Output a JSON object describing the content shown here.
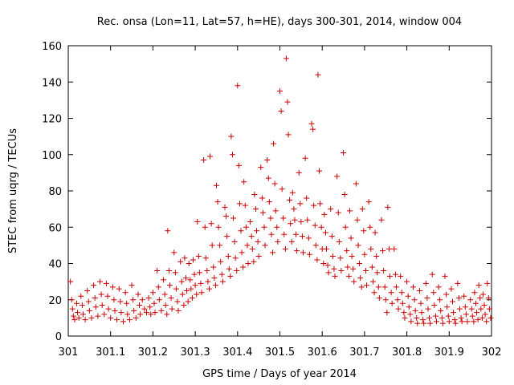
{
  "chart_data": {
    "type": "scatter",
    "title": "Rec. onsa (Lon=11, Lat=57, h=HE), days 300-301, 2014, window 004",
    "xlabel": "GPS time / Days of year 2014",
    "ylabel": "STEC from uqrg / TECUs",
    "xlim": [
      301,
      302
    ],
    "ylim": [
      0,
      160
    ],
    "xticks": [
      301,
      301.1,
      301.2,
      301.3,
      301.4,
      301.5,
      301.6,
      301.7,
      301.8,
      301.9,
      302
    ],
    "xtick_labels": [
      "301",
      "301.1",
      "301.2",
      "301.3",
      "301.4",
      "301.5",
      "301.6",
      "301.7",
      "301.8",
      "301.9",
      "302"
    ],
    "yticks": [
      0,
      20,
      40,
      60,
      80,
      100,
      120,
      140,
      160
    ],
    "ytick_labels": [
      "0",
      "20",
      "40",
      "60",
      "80",
      "100",
      "120",
      "140",
      "160"
    ],
    "grid": false,
    "marker": "+",
    "color": "#cc0000",
    "points": [
      [
        301.005,
        30
      ],
      [
        301.008,
        20
      ],
      [
        301.01,
        15
      ],
      [
        301.012,
        11
      ],
      [
        301.015,
        9
      ],
      [
        301.02,
        18
      ],
      [
        301.022,
        13
      ],
      [
        301.025,
        10
      ],
      [
        301.03,
        22
      ],
      [
        301.033,
        17
      ],
      [
        301.035,
        12
      ],
      [
        301.04,
        9
      ],
      [
        301.045,
        25
      ],
      [
        301.048,
        19
      ],
      [
        301.05,
        14
      ],
      [
        301.055,
        10
      ],
      [
        301.06,
        28
      ],
      [
        301.063,
        21
      ],
      [
        301.065,
        16
      ],
      [
        301.07,
        11
      ],
      [
        301.075,
        30
      ],
      [
        301.078,
        23
      ],
      [
        301.08,
        17
      ],
      [
        301.085,
        12
      ],
      [
        301.09,
        29
      ],
      [
        301.093,
        22
      ],
      [
        301.095,
        15
      ],
      [
        301.1,
        10
      ],
      [
        301.105,
        27
      ],
      [
        301.108,
        20
      ],
      [
        301.11,
        14
      ],
      [
        301.115,
        9
      ],
      [
        301.12,
        26
      ],
      [
        301.123,
        19
      ],
      [
        301.125,
        13
      ],
      [
        301.13,
        8
      ],
      [
        301.135,
        24
      ],
      [
        301.138,
        18
      ],
      [
        301.14,
        12
      ],
      [
        301.145,
        9
      ],
      [
        301.15,
        28
      ],
      [
        301.153,
        20
      ],
      [
        301.155,
        14
      ],
      [
        301.16,
        10
      ],
      [
        301.165,
        23
      ],
      [
        301.168,
        17
      ],
      [
        301.17,
        12
      ],
      [
        301.175,
        20
      ],
      [
        301.18,
        15
      ],
      [
        301.185,
        13
      ],
      [
        301.19,
        21
      ],
      [
        301.193,
        16
      ],
      [
        301.195,
        12
      ],
      [
        301.2,
        24
      ],
      [
        301.203,
        18
      ],
      [
        301.205,
        13
      ],
      [
        301.21,
        36
      ],
      [
        301.213,
        27
      ],
      [
        301.215,
        20
      ],
      [
        301.22,
        14
      ],
      [
        301.225,
        31
      ],
      [
        301.228,
        23
      ],
      [
        301.23,
        17
      ],
      [
        301.233,
        12
      ],
      [
        301.235,
        58
      ],
      [
        301.238,
        36
      ],
      [
        301.24,
        28
      ],
      [
        301.243,
        21
      ],
      [
        301.245,
        15
      ],
      [
        301.25,
        46
      ],
      [
        301.253,
        35
      ],
      [
        301.255,
        26
      ],
      [
        301.258,
        19
      ],
      [
        301.26,
        14
      ],
      [
        301.265,
        41
      ],
      [
        301.268,
        30
      ],
      [
        301.27,
        23
      ],
      [
        301.273,
        17
      ],
      [
        301.275,
        43
      ],
      [
        301.278,
        32
      ],
      [
        301.28,
        25
      ],
      [
        301.283,
        19
      ],
      [
        301.285,
        40
      ],
      [
        301.288,
        31
      ],
      [
        301.29,
        26
      ],
      [
        301.293,
        21
      ],
      [
        301.295,
        42
      ],
      [
        301.298,
        34
      ],
      [
        301.3,
        28
      ],
      [
        301.303,
        23
      ],
      [
        301.305,
        63
      ],
      [
        301.308,
        44
      ],
      [
        301.31,
        35
      ],
      [
        301.313,
        29
      ],
      [
        301.315,
        24
      ],
      [
        301.32,
        97
      ],
      [
        301.323,
        60
      ],
      [
        301.325,
        43
      ],
      [
        301.328,
        36
      ],
      [
        301.33,
        30
      ],
      [
        301.333,
        26
      ],
      [
        301.335,
        99
      ],
      [
        301.338,
        62
      ],
      [
        301.34,
        50
      ],
      [
        301.343,
        38
      ],
      [
        301.345,
        32
      ],
      [
        301.348,
        28
      ],
      [
        301.35,
        83
      ],
      [
        301.353,
        74
      ],
      [
        301.355,
        60
      ],
      [
        301.358,
        50
      ],
      [
        301.36,
        41
      ],
      [
        301.363,
        34
      ],
      [
        301.365,
        30
      ],
      [
        301.37,
        71
      ],
      [
        301.373,
        66
      ],
      [
        301.375,
        55
      ],
      [
        301.378,
        44
      ],
      [
        301.38,
        37
      ],
      [
        301.383,
        33
      ],
      [
        301.385,
        110
      ],
      [
        301.388,
        100
      ],
      [
        301.39,
        65
      ],
      [
        301.393,
        52
      ],
      [
        301.395,
        43
      ],
      [
        301.398,
        36
      ],
      [
        301.4,
        138
      ],
      [
        301.403,
        94
      ],
      [
        301.405,
        73
      ],
      [
        301.408,
        58
      ],
      [
        301.41,
        46
      ],
      [
        301.413,
        38
      ],
      [
        301.415,
        85
      ],
      [
        301.418,
        72
      ],
      [
        301.42,
        60
      ],
      [
        301.423,
        50
      ],
      [
        301.425,
        40
      ],
      [
        301.43,
        63
      ],
      [
        301.433,
        55
      ],
      [
        301.435,
        48
      ],
      [
        301.438,
        41
      ],
      [
        301.44,
        78
      ],
      [
        301.443,
        70
      ],
      [
        301.445,
        58
      ],
      [
        301.448,
        52
      ],
      [
        301.45,
        44
      ],
      [
        301.455,
        93
      ],
      [
        301.458,
        76
      ],
      [
        301.46,
        68
      ],
      [
        301.463,
        60
      ],
      [
        301.465,
        50
      ],
      [
        301.47,
        97
      ],
      [
        301.473,
        87
      ],
      [
        301.475,
        74
      ],
      [
        301.478,
        65
      ],
      [
        301.48,
        56
      ],
      [
        301.483,
        46
      ],
      [
        301.485,
        106
      ],
      [
        301.488,
        84
      ],
      [
        301.49,
        69
      ],
      [
        301.493,
        60
      ],
      [
        301.495,
        52
      ],
      [
        301.5,
        135
      ],
      [
        301.503,
        124
      ],
      [
        301.505,
        81
      ],
      [
        301.508,
        65
      ],
      [
        301.51,
        56
      ],
      [
        301.513,
        48
      ],
      [
        301.515,
        153
      ],
      [
        301.518,
        129
      ],
      [
        301.52,
        111
      ],
      [
        301.523,
        75
      ],
      [
        301.525,
        62
      ],
      [
        301.528,
        52
      ],
      [
        301.53,
        79
      ],
      [
        301.533,
        70
      ],
      [
        301.535,
        64
      ],
      [
        301.538,
        56
      ],
      [
        301.54,
        47
      ],
      [
        301.545,
        90
      ],
      [
        301.548,
        73
      ],
      [
        301.55,
        63
      ],
      [
        301.553,
        55
      ],
      [
        301.555,
        46
      ],
      [
        301.56,
        98
      ],
      [
        301.563,
        76
      ],
      [
        301.565,
        64
      ],
      [
        301.568,
        54
      ],
      [
        301.57,
        45
      ],
      [
        301.575,
        117
      ],
      [
        301.578,
        114
      ],
      [
        301.58,
        72
      ],
      [
        301.583,
        61
      ],
      [
        301.585,
        50
      ],
      [
        301.588,
        42
      ],
      [
        301.59,
        144
      ],
      [
        301.593,
        91
      ],
      [
        301.595,
        73
      ],
      [
        301.598,
        60
      ],
      [
        301.6,
        48
      ],
      [
        301.603,
        40
      ],
      [
        301.605,
        67
      ],
      [
        301.608,
        57
      ],
      [
        301.61,
        48
      ],
      [
        301.613,
        39
      ],
      [
        301.615,
        35
      ],
      [
        301.62,
        70
      ],
      [
        301.623,
        55
      ],
      [
        301.625,
        44
      ],
      [
        301.628,
        37
      ],
      [
        301.63,
        33
      ],
      [
        301.635,
        88
      ],
      [
        301.638,
        68
      ],
      [
        301.64,
        52
      ],
      [
        301.643,
        43
      ],
      [
        301.645,
        36
      ],
      [
        301.65,
        101
      ],
      [
        301.653,
        78
      ],
      [
        301.655,
        60
      ],
      [
        301.658,
        47
      ],
      [
        301.66,
        38
      ],
      [
        301.663,
        33
      ],
      [
        301.665,
        69
      ],
      [
        301.668,
        54
      ],
      [
        301.67,
        44
      ],
      [
        301.673,
        37
      ],
      [
        301.675,
        30
      ],
      [
        301.68,
        84
      ],
      [
        301.683,
        64
      ],
      [
        301.685,
        50
      ],
      [
        301.688,
        40
      ],
      [
        301.69,
        32
      ],
      [
        301.693,
        27
      ],
      [
        301.695,
        70
      ],
      [
        301.698,
        58
      ],
      [
        301.7,
        45
      ],
      [
        301.703,
        36
      ],
      [
        301.705,
        28
      ],
      [
        301.71,
        74
      ],
      [
        301.713,
        60
      ],
      [
        301.715,
        48
      ],
      [
        301.718,
        38
      ],
      [
        301.72,
        30
      ],
      [
        301.723,
        24
      ],
      [
        301.725,
        57
      ],
      [
        301.728,
        44
      ],
      [
        301.73,
        35
      ],
      [
        301.733,
        27
      ],
      [
        301.735,
        21
      ],
      [
        301.74,
        64
      ],
      [
        301.743,
        47
      ],
      [
        301.745,
        36
      ],
      [
        301.748,
        27
      ],
      [
        301.75,
        20
      ],
      [
        301.753,
        13
      ],
      [
        301.755,
        71
      ],
      [
        301.758,
        48
      ],
      [
        301.76,
        33
      ],
      [
        301.763,
        24
      ],
      [
        301.765,
        18
      ],
      [
        301.77,
        48
      ],
      [
        301.773,
        34
      ],
      [
        301.775,
        27
      ],
      [
        301.778,
        20
      ],
      [
        301.78,
        15
      ],
      [
        301.785,
        33
      ],
      [
        301.788,
        24
      ],
      [
        301.79,
        18
      ],
      [
        301.793,
        13
      ],
      [
        301.795,
        10
      ],
      [
        301.8,
        30
      ],
      [
        301.803,
        22
      ],
      [
        301.805,
        16
      ],
      [
        301.808,
        12
      ],
      [
        301.81,
        8
      ],
      [
        301.815,
        27
      ],
      [
        301.818,
        20
      ],
      [
        301.82,
        14
      ],
      [
        301.823,
        10
      ],
      [
        301.825,
        7
      ],
      [
        301.83,
        25
      ],
      [
        301.833,
        18
      ],
      [
        301.835,
        13
      ],
      [
        301.838,
        9
      ],
      [
        301.84,
        7
      ],
      [
        301.845,
        29
      ],
      [
        301.848,
        21
      ],
      [
        301.85,
        15
      ],
      [
        301.853,
        10
      ],
      [
        301.855,
        7
      ],
      [
        301.86,
        34
      ],
      [
        301.863,
        24
      ],
      [
        301.865,
        17
      ],
      [
        301.868,
        11
      ],
      [
        301.87,
        8
      ],
      [
        301.875,
        27
      ],
      [
        301.878,
        20
      ],
      [
        301.88,
        14
      ],
      [
        301.883,
        10
      ],
      [
        301.885,
        7
      ],
      [
        301.89,
        33
      ],
      [
        301.893,
        23
      ],
      [
        301.895,
        16
      ],
      [
        301.898,
        11
      ],
      [
        301.9,
        8
      ],
      [
        301.905,
        26
      ],
      [
        301.908,
        19
      ],
      [
        301.91,
        13
      ],
      [
        301.913,
        9
      ],
      [
        301.915,
        7
      ],
      [
        301.92,
        29
      ],
      [
        301.923,
        21
      ],
      [
        301.925,
        15
      ],
      [
        301.928,
        10
      ],
      [
        301.93,
        8
      ],
      [
        301.935,
        22
      ],
      [
        301.938,
        16
      ],
      [
        301.94,
        12
      ],
      [
        301.943,
        8
      ],
      [
        301.95,
        20
      ],
      [
        301.953,
        15
      ],
      [
        301.955,
        11
      ],
      [
        301.958,
        8
      ],
      [
        301.96,
        24
      ],
      [
        301.963,
        18
      ],
      [
        301.965,
        13
      ],
      [
        301.968,
        9
      ],
      [
        301.97,
        28
      ],
      [
        301.973,
        21
      ],
      [
        301.975,
        15
      ],
      [
        301.978,
        10
      ],
      [
        301.98,
        23
      ],
      [
        301.983,
        17
      ],
      [
        301.985,
        12
      ],
      [
        301.988,
        8
      ],
      [
        301.99,
        29
      ],
      [
        301.993,
        21
      ],
      [
        301.995,
        15
      ],
      [
        301.998,
        10
      ]
    ]
  }
}
